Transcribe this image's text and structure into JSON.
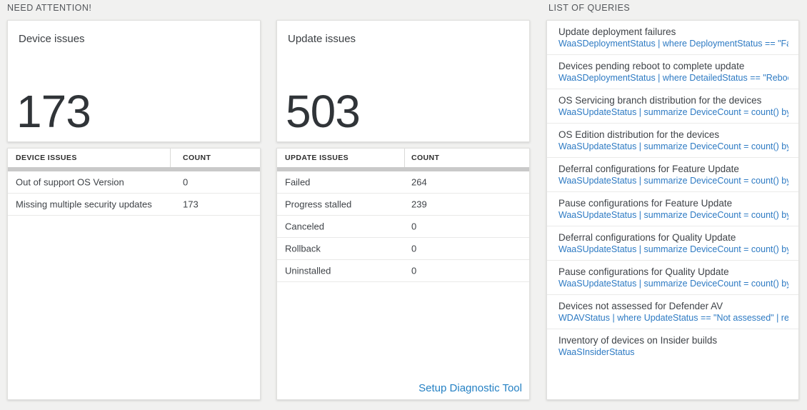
{
  "headers": {
    "need_attention": "NEED ATTENTION!",
    "list_of_queries": "LIST OF QUERIES"
  },
  "device_card": {
    "title": "Device issues",
    "total": "173",
    "table": {
      "columns": [
        "DEVICE ISSUES",
        "COUNT"
      ],
      "rows": [
        {
          "label": "Out of support OS Version",
          "count": "0"
        },
        {
          "label": "Missing multiple security updates",
          "count": "173"
        }
      ]
    }
  },
  "update_card": {
    "title": "Update issues",
    "total": "503",
    "table": {
      "columns": [
        "UPDATE ISSUES",
        "COUNT"
      ],
      "rows": [
        {
          "label": "Failed",
          "count": "264"
        },
        {
          "label": "Progress stalled",
          "count": "239"
        },
        {
          "label": "Canceled",
          "count": "0"
        },
        {
          "label": "Rollback",
          "count": "0"
        },
        {
          "label": "Uninstalled",
          "count": "0"
        }
      ]
    },
    "link": "Setup Diagnostic Tool"
  },
  "queries": {
    "items": [
      {
        "title": "Update deployment failures",
        "query": "WaaSDeploymentStatus | where DeploymentStatus == \"Failed\" |..."
      },
      {
        "title": "Devices pending reboot to complete update",
        "query": "WaaSDeploymentStatus | where DetailedStatus == \"Reboot pend..."
      },
      {
        "title": "OS Servicing branch distribution for the devices",
        "query": "WaaSUpdateStatus | summarize DeviceCount = count() by OSSer..."
      },
      {
        "title": "OS Edition distribution for the devices",
        "query": "WaaSUpdateStatus | summarize DeviceCount = count() by OSEdit..."
      },
      {
        "title": "Deferral configurations for Feature Update",
        "query": "WaaSUpdateStatus | summarize DeviceCount = count() by Featur..."
      },
      {
        "title": "Pause configurations for Feature Update",
        "query": "WaaSUpdateStatus | summarize DeviceCount = count() by Featur..."
      },
      {
        "title": "Deferral configurations for Quality Update",
        "query": "WaaSUpdateStatus | summarize DeviceCount = count() by Qualit..."
      },
      {
        "title": "Pause configurations for Quality Update",
        "query": "WaaSUpdateStatus | summarize DeviceCount = count() by Qualit..."
      },
      {
        "title": "Devices not assessed for Defender AV",
        "query": "WDAVStatus | where UpdateStatus == \"Not assessed\" | render ta..."
      },
      {
        "title": "Inventory of devices on Insider builds",
        "query": "WaaSInsiderStatus"
      }
    ]
  },
  "colors": {
    "background": "#f1f1f0",
    "card_background": "#ffffff",
    "query_link_blue": "#2d7ac3",
    "action_link_blue": "#2581c4",
    "big_number_text": "#303438",
    "scrollbar_gray": "#c9c9c9"
  }
}
